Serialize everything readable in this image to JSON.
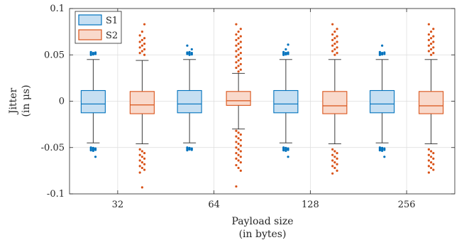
{
  "chart_data": {
    "type": "box",
    "title": "",
    "xlabel": [
      "Payload size",
      "(in bytes)"
    ],
    "ylabel": [
      "Jitter",
      "(in μs)"
    ],
    "ylim": [
      -0.1,
      0.1
    ],
    "yticks": [
      -0.1,
      -0.05,
      0,
      0.05,
      0.1
    ],
    "ytick_labels": [
      "-0.1",
      "-0.05",
      "0",
      "0.05",
      "0.1"
    ],
    "categories": [
      "32",
      "64",
      "128",
      "256"
    ],
    "grid": true,
    "legend_position": "top-left",
    "series": [
      {
        "name": "S1",
        "color": "#0072BD",
        "fill": "#C6DFF2",
        "boxes": [
          {
            "category": "32",
            "whisker_low": -0.045,
            "q1": -0.0125,
            "median": -0.003,
            "q3": 0.0115,
            "whisker_high": 0.045,
            "outliers": [
              -0.05,
              -0.0505,
              -0.051,
              -0.0515,
              -0.052,
              -0.0525,
              -0.053,
              -0.0535,
              -0.06,
              0.05,
              0.0505,
              0.051,
              0.0515,
              0.052,
              0.0525,
              0.053
            ]
          },
          {
            "category": "64",
            "whisker_low": -0.045,
            "q1": -0.0125,
            "median": -0.003,
            "q3": 0.0115,
            "whisker_high": 0.045,
            "outliers": [
              -0.05,
              -0.0505,
              -0.051,
              -0.0515,
              -0.052,
              -0.0525,
              -0.053,
              0.05,
              0.0505,
              0.051,
              0.0515,
              0.052,
              0.0525,
              0.053,
              0.056,
              0.06
            ]
          },
          {
            "category": "128",
            "whisker_low": -0.045,
            "q1": -0.0125,
            "median": -0.003,
            "q3": 0.0115,
            "whisker_high": 0.045,
            "outliers": [
              -0.05,
              -0.0505,
              -0.051,
              -0.0515,
              -0.052,
              -0.0525,
              -0.053,
              -0.0535,
              -0.06,
              0.05,
              0.0505,
              0.051,
              0.0515,
              0.052,
              0.0525,
              0.053,
              0.056,
              0.061
            ]
          },
          {
            "category": "256",
            "whisker_low": -0.045,
            "q1": -0.0125,
            "median": -0.003,
            "q3": 0.0115,
            "whisker_high": 0.045,
            "outliers": [
              -0.05,
              -0.0505,
              -0.051,
              -0.0515,
              -0.052,
              -0.0525,
              -0.053,
              -0.0535,
              -0.06,
              0.05,
              0.0505,
              0.051,
              0.0515,
              0.052,
              0.0525,
              0.053,
              0.06
            ]
          }
        ]
      },
      {
        "name": "S2",
        "color": "#D95319",
        "fill": "#F9D9CB",
        "boxes": [
          {
            "category": "32",
            "whisker_low": -0.046,
            "q1": -0.0135,
            "median": -0.004,
            "q3": 0.0105,
            "whisker_high": 0.044,
            "outliers": [
              -0.052,
              -0.054,
              -0.056,
              -0.058,
              -0.06,
              -0.062,
              -0.064,
              -0.066,
              -0.068,
              -0.07,
              -0.072,
              -0.074,
              -0.077,
              -0.093,
              0.05,
              0.052,
              0.054,
              0.056,
              0.058,
              0.06,
              0.062,
              0.064,
              0.066,
              0.068,
              0.071,
              0.075,
              0.083
            ]
          },
          {
            "category": "64",
            "whisker_low": -0.03,
            "q1": -0.0045,
            "median": 0.0005,
            "q3": 0.0105,
            "whisker_high": 0.03,
            "outliers": [
              -0.032,
              -0.034,
              -0.036,
              -0.038,
              -0.04,
              -0.042,
              -0.044,
              -0.046,
              -0.048,
              -0.05,
              -0.052,
              -0.054,
              -0.056,
              -0.058,
              -0.06,
              -0.062,
              -0.064,
              -0.066,
              -0.069,
              -0.072,
              -0.075,
              -0.092,
              0.032,
              0.034,
              0.036,
              0.038,
              0.04,
              0.042,
              0.044,
              0.046,
              0.048,
              0.05,
              0.052,
              0.054,
              0.056,
              0.058,
              0.06,
              0.062,
              0.064,
              0.066,
              0.068,
              0.07,
              0.072,
              0.075,
              0.078,
              0.083
            ]
          },
          {
            "category": "128",
            "whisker_low": -0.046,
            "q1": -0.0135,
            "median": -0.005,
            "q3": 0.0105,
            "whisker_high": 0.045,
            "outliers": [
              -0.052,
              -0.054,
              -0.056,
              -0.058,
              -0.06,
              -0.062,
              -0.064,
              -0.066,
              -0.068,
              -0.07,
              -0.072,
              -0.075,
              -0.078,
              0.05,
              0.052,
              0.054,
              0.056,
              0.058,
              0.06,
              0.062,
              0.064,
              0.066,
              0.068,
              0.07,
              0.072,
              0.075,
              0.078,
              0.083
            ]
          },
          {
            "category": "256",
            "whisker_low": -0.046,
            "q1": -0.0135,
            "median": -0.005,
            "q3": 0.0105,
            "whisker_high": 0.045,
            "outliers": [
              -0.052,
              -0.054,
              -0.056,
              -0.058,
              -0.06,
              -0.062,
              -0.064,
              -0.066,
              -0.068,
              -0.07,
              -0.072,
              -0.074,
              -0.077,
              0.05,
              0.052,
              0.054,
              0.056,
              0.058,
              0.06,
              0.062,
              0.064,
              0.066,
              0.068,
              0.07,
              0.072,
              0.075,
              0.078,
              0.083
            ]
          }
        ]
      }
    ]
  }
}
